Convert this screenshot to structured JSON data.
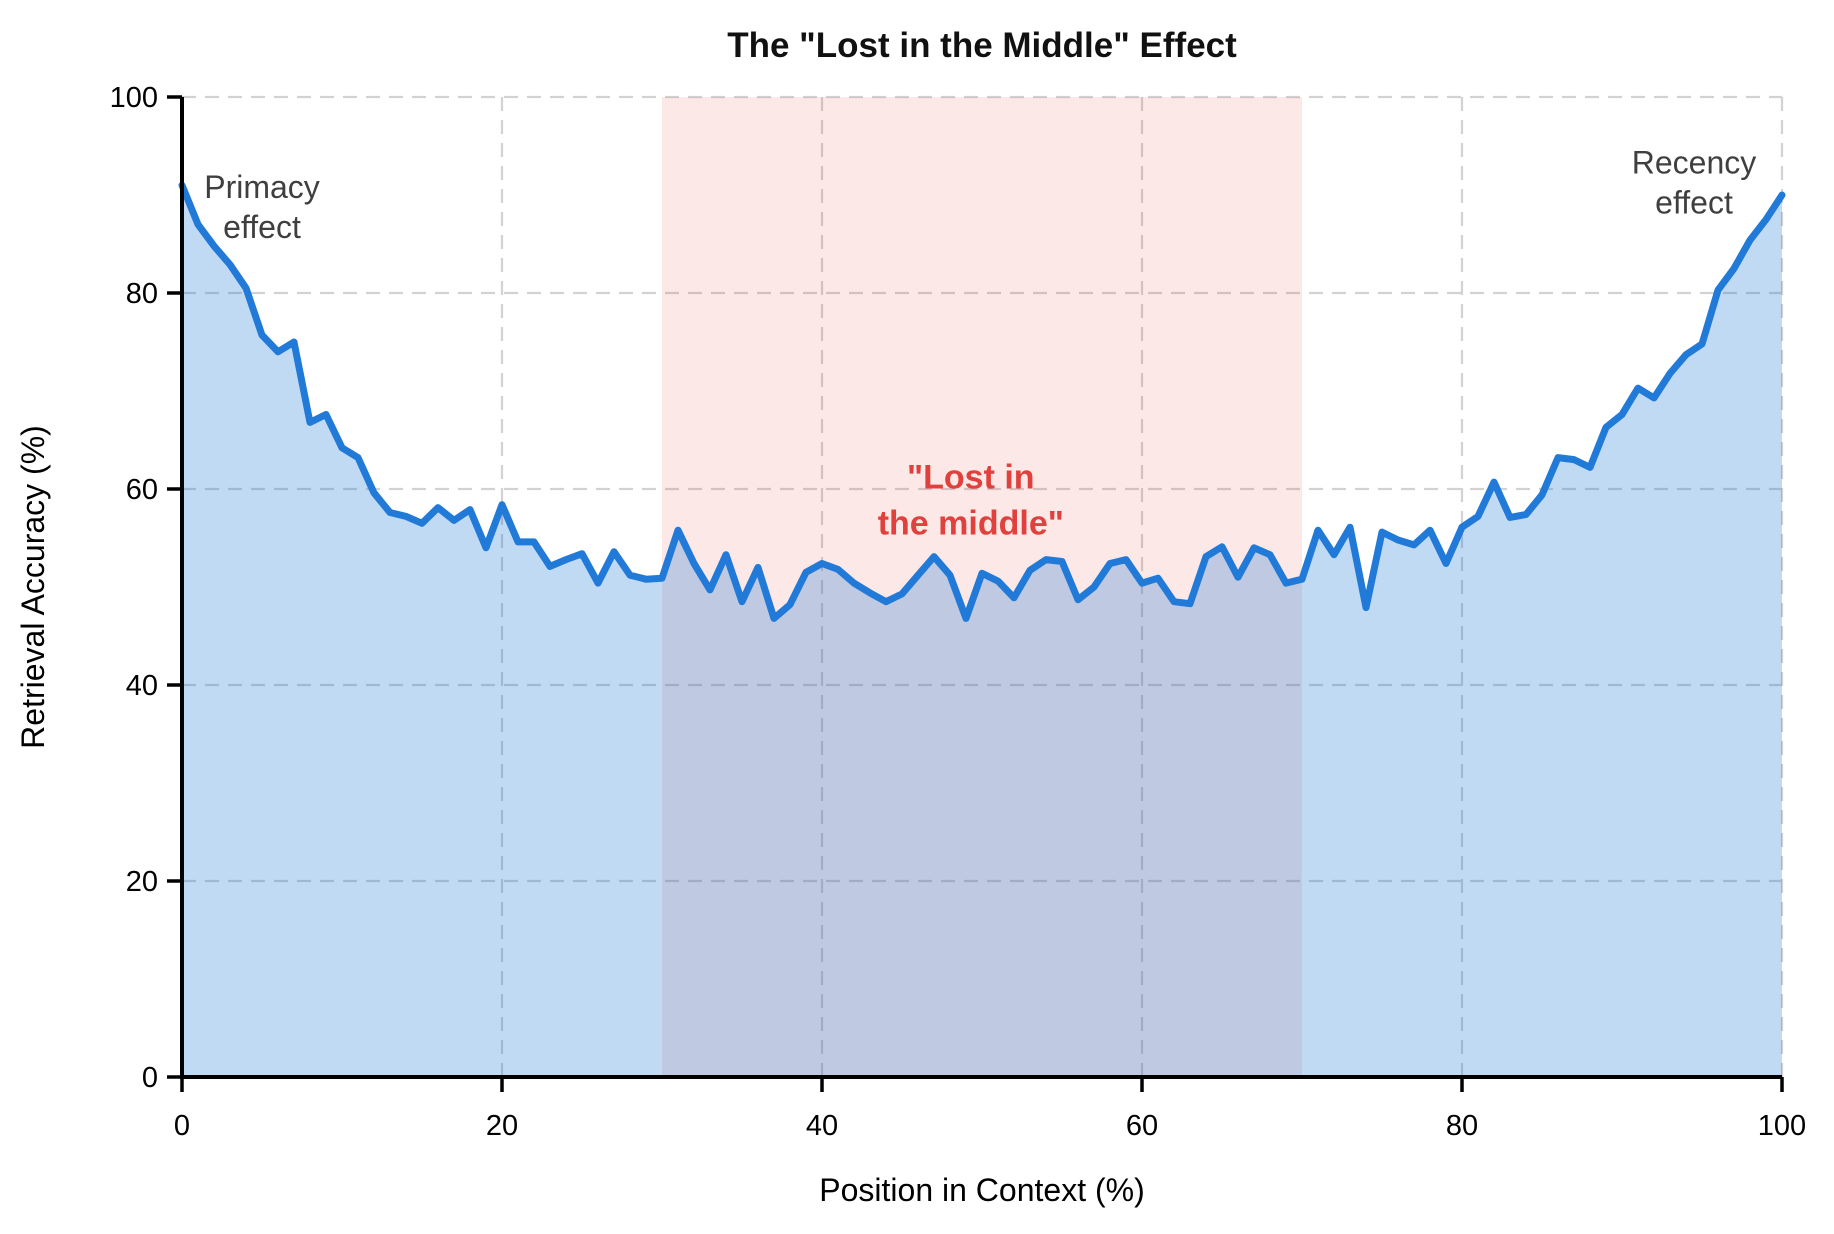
{
  "chart_data": {
    "type": "line",
    "title": "The \"Lost in the Middle\" Effect",
    "xlabel": "Position in Context (%)",
    "ylabel": "Retrieval Accuracy (%)",
    "xlim": [
      0,
      100
    ],
    "ylim": [
      0,
      100
    ],
    "xticks": [
      0,
      20,
      40,
      60,
      80,
      100
    ],
    "yticks": [
      0,
      20,
      40,
      60,
      80,
      100
    ],
    "grid": "dashed",
    "legend": "none",
    "series": [
      {
        "name": "retrieval-accuracy",
        "x_start": 0,
        "x_step": 1,
        "values": [
          91,
          87,
          84.8,
          82.9,
          80.5,
          75.7,
          74.0,
          75.0,
          66.8,
          67.6,
          64.2,
          63.2,
          59.6,
          57.6,
          57.2,
          56.5,
          58.1,
          56.8,
          57.9,
          54.0,
          58.4,
          54.6,
          54.6,
          52.1,
          52.8,
          53.4,
          50.4,
          53.6,
          51.2,
          50.8,
          50.9,
          55.8,
          52.4,
          49.7,
          53.3,
          48.5,
          52.0,
          46.8,
          48.2,
          51.5,
          52.4,
          51.8,
          50.4,
          49.4,
          48.5,
          49.3,
          51.2,
          53.1,
          51.2,
          46.8,
          51.4,
          50.6,
          48.9,
          51.7,
          52.8,
          52.6,
          48.7,
          50.0,
          52.4,
          52.8,
          50.4,
          50.9,
          48.5,
          48.3,
          53.1,
          54.1,
          51.0,
          54.0,
          53.3,
          50.4,
          50.8,
          55.8,
          53.3,
          56.1,
          47.9,
          55.6,
          54.8,
          54.3,
          55.8,
          52.4,
          56.1,
          57.2,
          60.7,
          57.1,
          57.4,
          59.4,
          63.2,
          63.0,
          62.2,
          66.3,
          67.6,
          70.3,
          69.3,
          71.8,
          73.7,
          74.8,
          80.3,
          82.5,
          85.4,
          87.5,
          90.0
        ]
      }
    ],
    "shaded_band": {
      "x0": 30,
      "x1": 70,
      "color": "#e74c3c",
      "opacity": 0.13
    },
    "annotations": [
      {
        "name": "primacy-effect-label",
        "lines": [
          "Primacy",
          "effect"
        ],
        "x": 5,
        "y": 88.8,
        "color": "#3f3f3f",
        "bold": false,
        "size": 32,
        "line_height": 40
      },
      {
        "name": "recency-effect-label",
        "lines": [
          "Recency",
          "effect"
        ],
        "x": 94.5,
        "y": 91.3,
        "color": "#3f3f3f",
        "bold": false,
        "size": 32,
        "line_height": 40
      },
      {
        "name": "lost-in-middle-label",
        "lines": [
          "\"Lost in",
          "the middle\""
        ],
        "x": 49.3,
        "y": 58.9,
        "color": "#e0413c",
        "bold": true,
        "size": 34,
        "line_height": 46
      }
    ],
    "colors": {
      "line": "#217ad8",
      "area_fill": "rgba(33,122,216,0.28)",
      "grid": "#d2d2d2",
      "axis": "#000000",
      "tick_label": "#000000"
    }
  }
}
